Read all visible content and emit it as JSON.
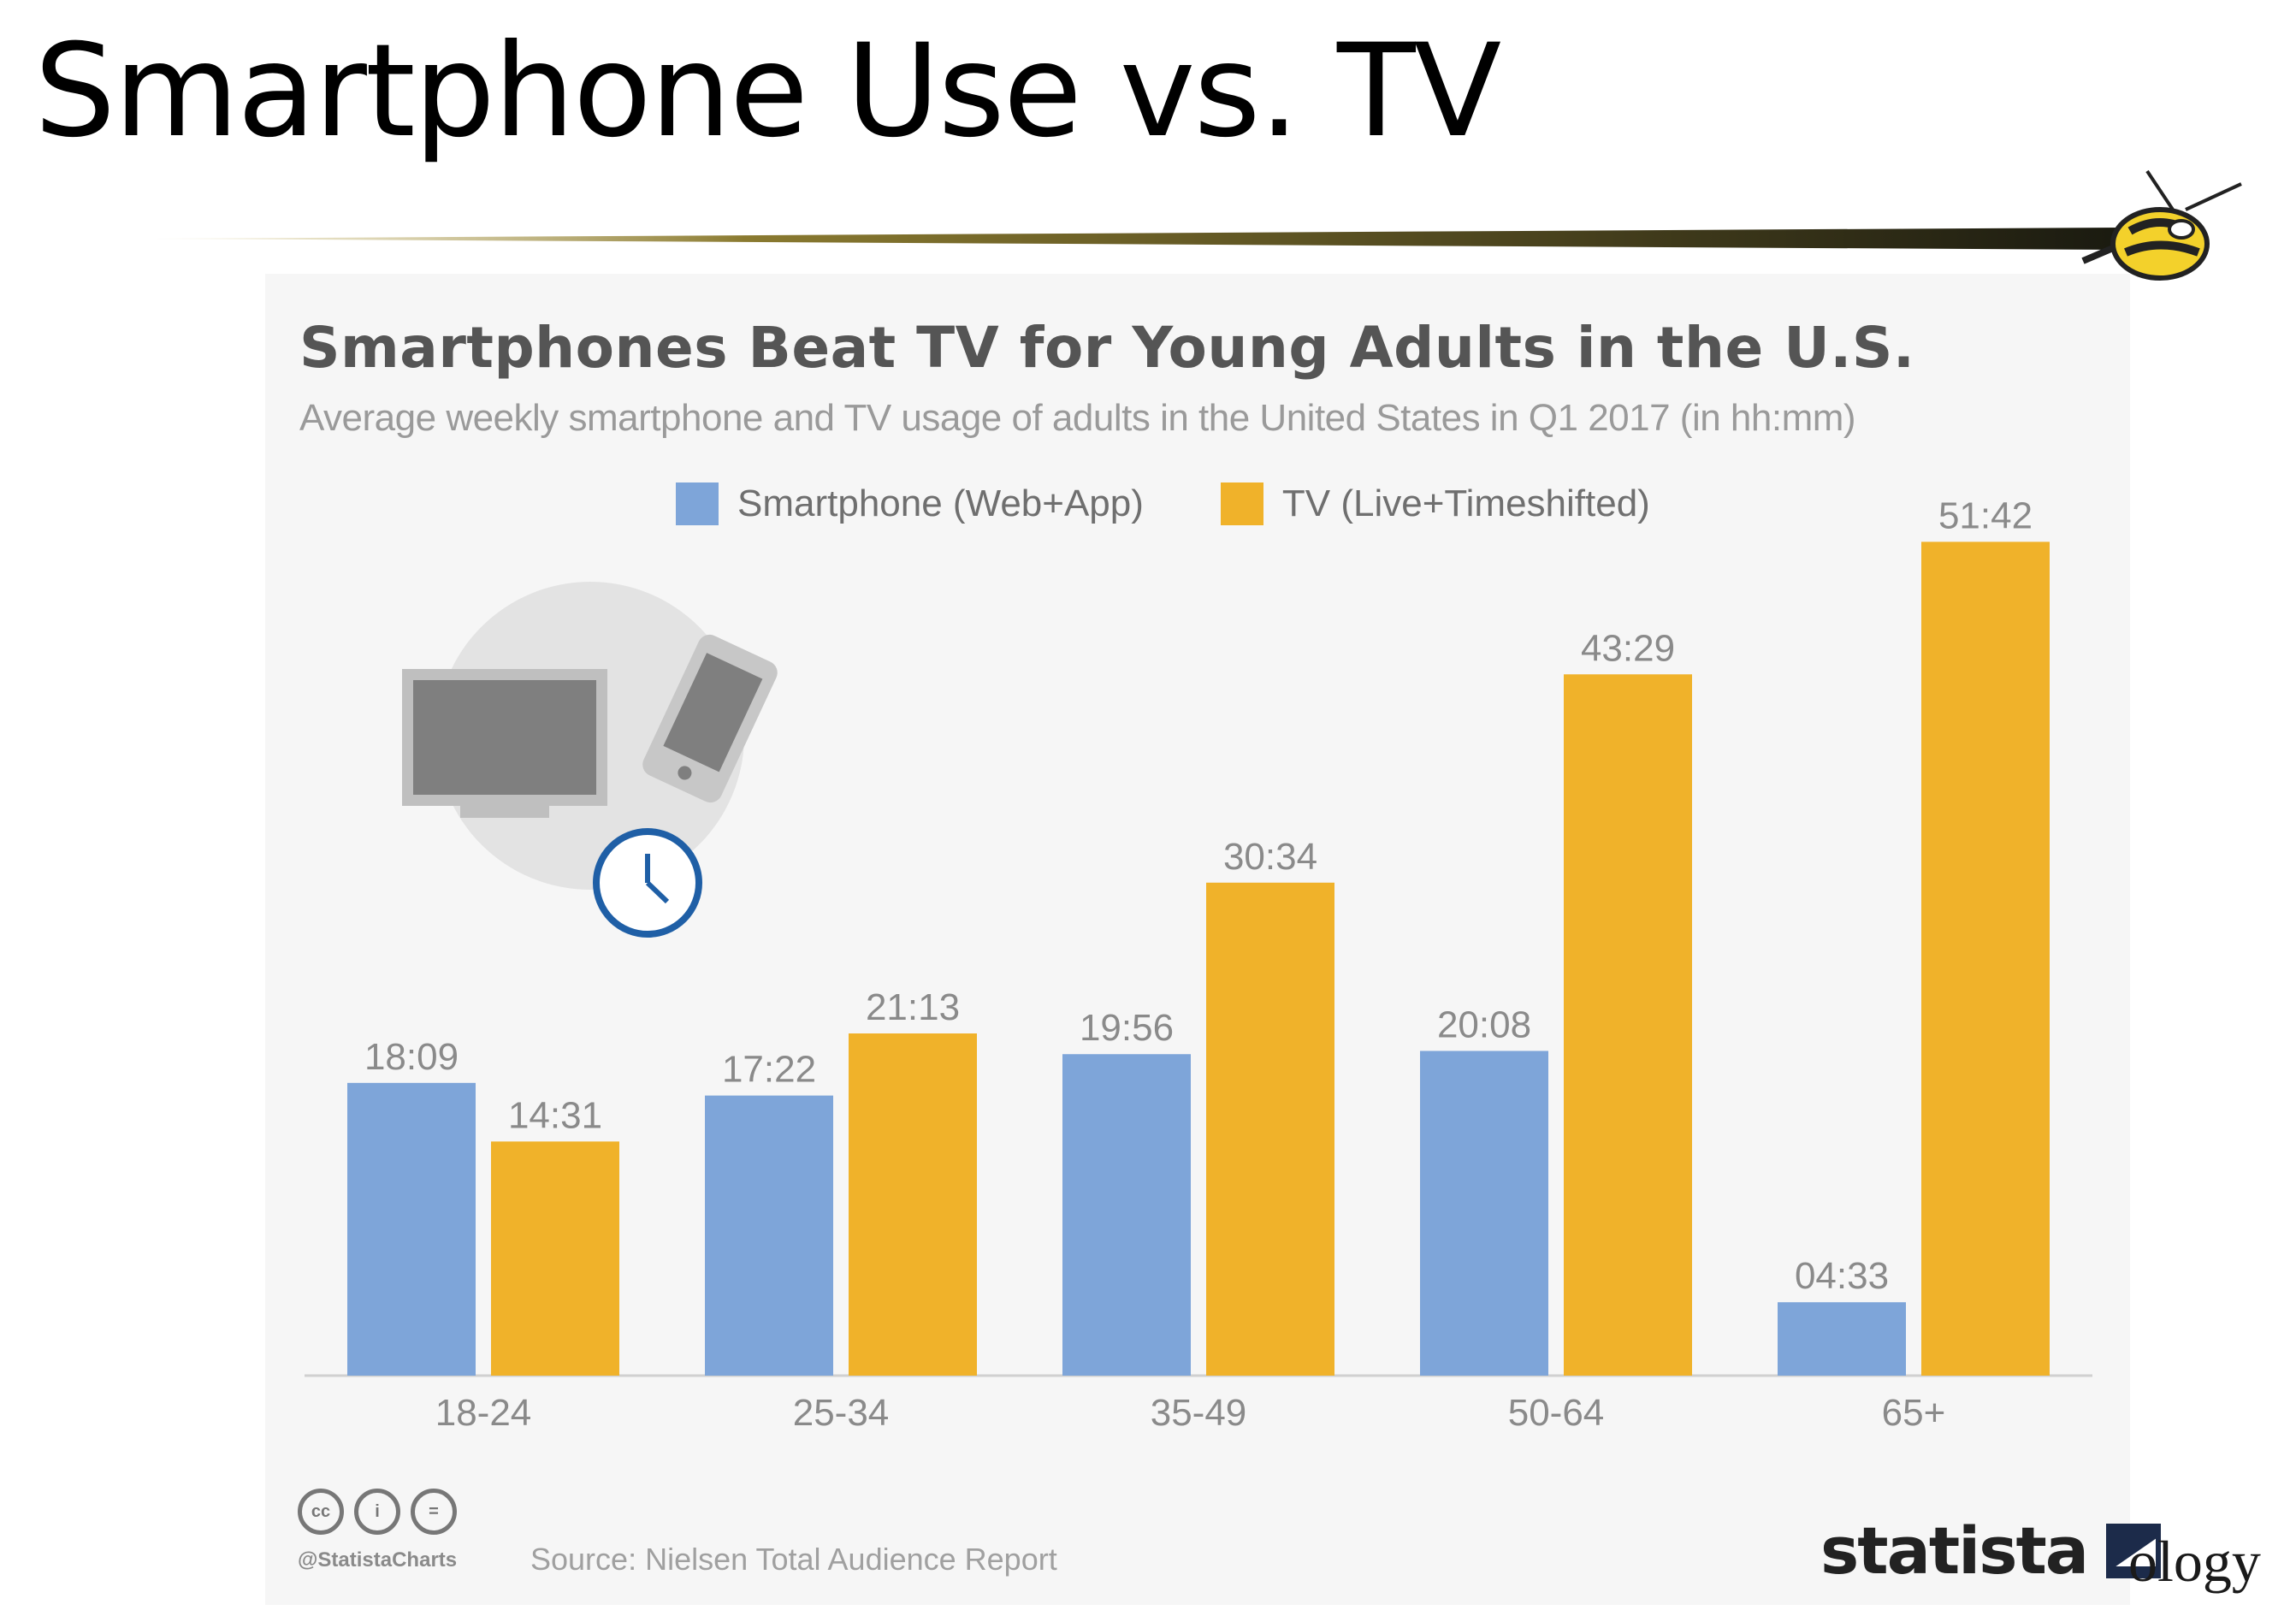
{
  "slide": {
    "title": "Smartphone Use vs. TV",
    "corner_text": "ology"
  },
  "colors": {
    "smartphone": "#7ea5d9",
    "tv": "#f0b22a",
    "value_label": "#8a8a8a",
    "axis_label": "#8a8a8a",
    "card_bg": "#f6f6f6"
  },
  "chart_data": {
    "type": "bar",
    "title": "Smartphones Beat TV for Young Adults in the U.S.",
    "subtitle": "Average weekly smartphone and TV usage of adults in the United States in Q1 2017 (in hh:mm)",
    "xlabel": "",
    "ylabel": "",
    "categories": [
      "18-24",
      "25-34",
      "35-49",
      "50-64",
      "65+"
    ],
    "series": [
      {
        "name": "Smartphone (Web+App)",
        "color": "#7ea5d9",
        "values": [
          18.15,
          17.367,
          19.933,
          20.133,
          4.55
        ],
        "labels": [
          "18:09",
          "17:22",
          "19:56",
          "20:08",
          "04:33"
        ]
      },
      {
        "name": "TV (Live+Timeshifted)",
        "color": "#f0b22a",
        "values": [
          14.517,
          21.217,
          30.567,
          43.483,
          51.7
        ],
        "labels": [
          "14:31",
          "21:13",
          "30:34",
          "43:29",
          "51:42"
        ]
      }
    ],
    "ylim": [
      0,
      54
    ],
    "grid": false,
    "legend_position": "top-center"
  },
  "footer": {
    "handle": "@StatistaCharts",
    "source": "Source: Nielsen Total Audience Report",
    "brand": "statista"
  },
  "icons": {
    "illustration": "tv-phone-clock-illustration",
    "mascot": "yellow-jacket-mascot-icon",
    "license": [
      "cc-icon",
      "by-icon",
      "nd-icon"
    ],
    "brand_mark": "statista-logo-icon"
  }
}
